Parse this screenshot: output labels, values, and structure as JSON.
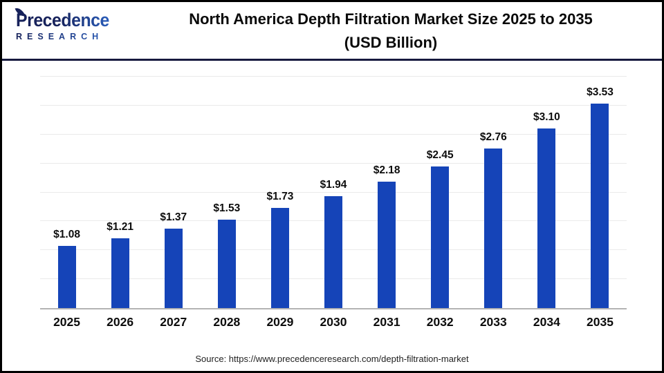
{
  "header": {
    "logo": {
      "name": "Precedence",
      "subname": "RESEARCH"
    },
    "title_line1": "North America Depth Filtration Market Size 2025 to 2035",
    "title_line2": "(USD Billion)"
  },
  "footer": {
    "source": "Source: https://www.precedenceresearch.com/depth-filtration-market"
  },
  "colors": {
    "bar": "#1544b8",
    "divider": "#171a3e",
    "logo_dark": "#17225b",
    "logo_light": "#2f6fd8",
    "grid": "#eaeaea",
    "baseline": "#b3b3b3",
    "frame_border": "#000000"
  },
  "chart_data": {
    "type": "bar",
    "title": "North America Depth Filtration Market Size 2025 to 2035 (USD Billion)",
    "categories": [
      "2025",
      "2026",
      "2027",
      "2028",
      "2029",
      "2030",
      "2031",
      "2032",
      "2033",
      "2034",
      "2035"
    ],
    "values": [
      1.08,
      1.21,
      1.37,
      1.53,
      1.73,
      1.94,
      2.18,
      2.45,
      2.76,
      3.1,
      3.53
    ],
    "value_labels": [
      "$1.08",
      "$1.21",
      "$1.37",
      "$1.53",
      "$1.73",
      "$1.94",
      "$2.18",
      "$2.45",
      "$2.76",
      "$3.10",
      "$3.53"
    ],
    "xlabel": "",
    "ylabel": "",
    "ylim": [
      0,
      4
    ],
    "gridline_step": 0.5,
    "grid": true,
    "legend": false
  }
}
